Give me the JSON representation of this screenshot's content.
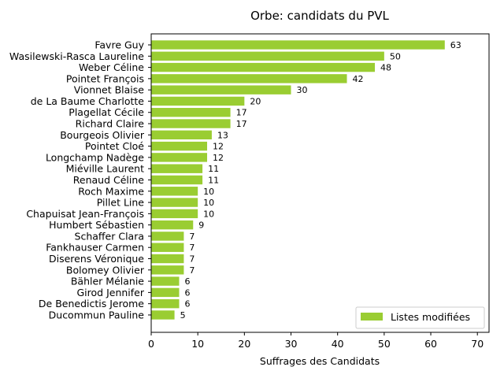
{
  "chart_data": {
    "type": "bar",
    "orientation": "horizontal",
    "title": "Orbe: candidats du PVL",
    "xlabel": "Suffrages des Candidats",
    "ylabel": "",
    "xlim": [
      0,
      72.5
    ],
    "xticks": [
      0,
      10,
      20,
      30,
      40,
      50,
      60,
      70
    ],
    "grid": false,
    "legend_position": "bottom-right",
    "bar_color": "#9acd32",
    "categories": [
      "Favre Guy",
      "Wasilewski-Rasca Laureline",
      "Weber Céline",
      "Pointet François",
      "Vionnet Blaise",
      "de La Baume Charlotte",
      "Plagellat Cécile",
      "Richard Claire",
      "Bourgeois Olivier",
      "Pointet Cloé",
      "Longchamp Nadège",
      "Miéville Laurent",
      "Renaud Céline",
      "Roch Maxime",
      "Pillet Line",
      "Chapuisat Jean-François",
      "Humbert Sébastien",
      "Schaffer Clara",
      "Fankhauser Carmen",
      "Diserens Véronique",
      "Bolomey Olivier",
      "Bähler Mélanie",
      "Girod Jennifer",
      "De Benedictis Jerome",
      "Ducommun Pauline"
    ],
    "series": [
      {
        "name": "Listes modifiées",
        "values": [
          63,
          50,
          48,
          42,
          30,
          20,
          17,
          17,
          13,
          12,
          12,
          11,
          11,
          10,
          10,
          10,
          9,
          7,
          7,
          7,
          7,
          6,
          6,
          6,
          5
        ]
      }
    ]
  }
}
